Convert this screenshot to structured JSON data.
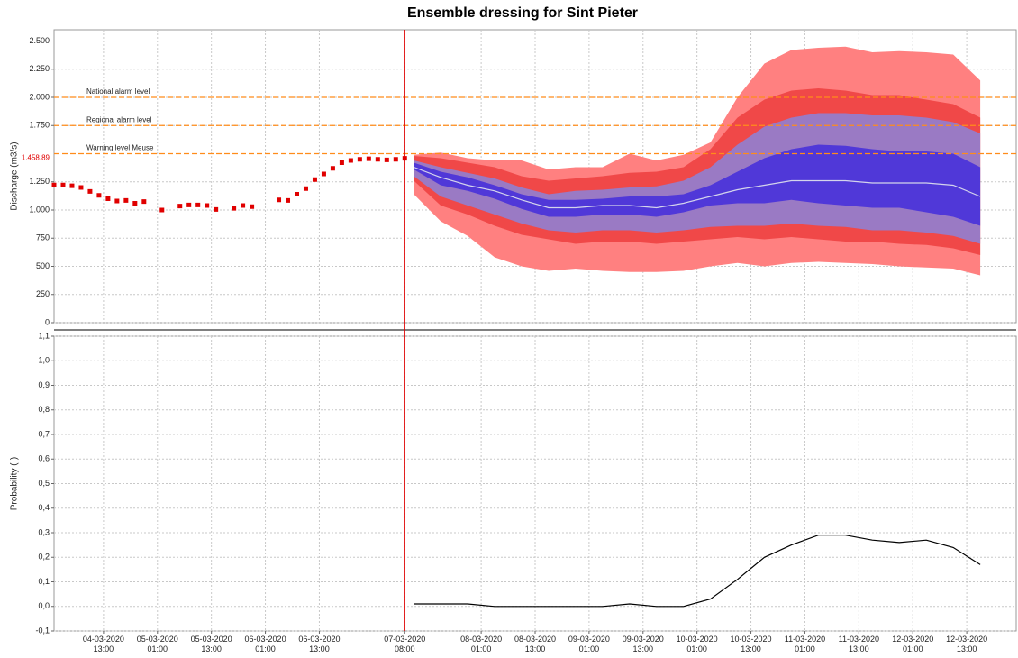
{
  "chart_data": [
    {
      "type": "ensemble",
      "title": "Ensemble dressing for Sint Pieter",
      "y_label": "Discharge (m3/s)",
      "ylim": [
        0,
        2600
      ],
      "yticks": [
        0,
        250,
        500,
        750,
        {
          "value": 1000,
          "label": "1.000"
        },
        {
          "value": 1250,
          "label": "1.250"
        },
        {
          "value": 1750,
          "label": "1.750"
        },
        {
          "value": 2000,
          "label": "2.000"
        },
        {
          "value": 2250,
          "label": "2.250"
        },
        {
          "value": 2500,
          "label": "2.500"
        }
      ],
      "grid": true,
      "current_value": {
        "value": 1458.89,
        "label": "1.458.89",
        "color": "#e00000"
      },
      "forecast_time": "2020-03-07T08:00",
      "forecast_time_color": "#e00000",
      "thresholds": [
        {
          "name": "National alarm level",
          "value": 2000,
          "color": "#ff8c1a"
        },
        {
          "name": "Regional alarm level",
          "value": 1750,
          "color": "#ff8c1a"
        },
        {
          "name": "Warning level Meuse",
          "value": 1500,
          "color": "#ff8c1a"
        }
      ],
      "observed": {
        "color": "#e00000",
        "x": [
          "2020-03-04T02:00",
          "2020-03-04T04:00",
          "2020-03-04T06:00",
          "2020-03-04T08:00",
          "2020-03-04T10:00",
          "2020-03-04T12:00",
          "2020-03-04T14:00",
          "2020-03-04T16:00",
          "2020-03-04T18:00",
          "2020-03-04T20:00",
          "2020-03-04T22:00",
          "2020-03-05T00:00",
          "2020-03-05T02:00",
          "2020-03-05T04:00",
          "2020-03-05T06:00",
          "2020-03-05T08:00",
          "2020-03-05T10:00",
          "2020-03-05T12:00",
          "2020-03-05T14:00",
          "2020-03-05T16:00",
          "2020-03-05T18:00",
          "2020-03-05T20:00",
          "2020-03-05T22:00",
          "2020-03-06T00:00",
          "2020-03-06T02:00",
          "2020-03-06T04:00",
          "2020-03-06T06:00",
          "2020-03-06T08:00",
          "2020-03-06T10:00",
          "2020-03-06T12:00",
          "2020-03-06T14:00",
          "2020-03-06T16:00",
          "2020-03-06T18:00",
          "2020-03-06T20:00",
          "2020-03-06T22:00",
          "2020-03-07T00:00",
          "2020-03-07T02:00",
          "2020-03-07T04:00",
          "2020-03-07T06:00",
          "2020-03-07T08:00"
        ],
        "values": [
          1222,
          1222,
          1215,
          1200,
          1165,
          1130,
          1100,
          1080,
          1085,
          1060,
          1075,
          null,
          1000,
          null,
          1035,
          1045,
          1045,
          1040,
          1005,
          null,
          1015,
          1040,
          1030,
          null,
          null,
          1090,
          1085,
          1140,
          1190,
          1270,
          1320,
          1370,
          1420,
          1440,
          1450,
          1455,
          1450,
          1445,
          1450,
          1459
        ]
      },
      "forecast": {
        "x": [
          "2020-03-07T10:00",
          "2020-03-07T16:00",
          "2020-03-07T22:00",
          "2020-03-08T04:00",
          "2020-03-08T10:00",
          "2020-03-08T16:00",
          "2020-03-08T22:00",
          "2020-03-09T04:00",
          "2020-03-09T10:00",
          "2020-03-09T16:00",
          "2020-03-09T22:00",
          "2020-03-10T04:00",
          "2020-03-10T10:00",
          "2020-03-10T16:00",
          "2020-03-10T22:00",
          "2020-03-11T04:00",
          "2020-03-11T10:00",
          "2020-03-11T16:00",
          "2020-03-11T22:00",
          "2020-03-12T04:00",
          "2020-03-12T10:00",
          "2020-03-12T16:00"
        ],
        "bands": [
          {
            "color": "#ff8080",
            "lower": [
              1140,
              900,
              770,
              580,
              500,
              460,
              480,
              460,
              450,
              450,
              460,
              500,
              530,
              500,
              530,
              540,
              530,
              520,
              500,
              490,
              480,
              420
            ],
            "upper": [
              1490,
              1510,
              1460,
              1440,
              1440,
              1360,
              1380,
              1380,
              1500,
              1440,
              1490,
              1600,
              2000,
              2300,
              2420,
              2440,
              2450,
              2400,
              2410,
              2400,
              2380,
              2150
            ]
          },
          {
            "color": "#f04848",
            "lower": [
              1260,
              1040,
              960,
              860,
              780,
              740,
              700,
              720,
              720,
              700,
              720,
              740,
              760,
              740,
              760,
              740,
              720,
              720,
              700,
              690,
              660,
              600
            ],
            "upper": [
              1480,
              1460,
              1420,
              1380,
              1300,
              1260,
              1280,
              1300,
              1330,
              1340,
              1380,
              1540,
              1820,
              1980,
              2060,
              2080,
              2060,
              2020,
              2020,
              1980,
              1940,
              1820
            ]
          },
          {
            "color": "#9a7ac4",
            "lower": [
              1300,
              1120,
              1040,
              960,
              880,
              820,
              800,
              820,
              820,
              800,
              820,
              850,
              860,
              860,
              880,
              860,
              850,
              820,
              820,
              800,
              770,
              700
            ],
            "upper": [
              1440,
              1380,
              1330,
              1280,
              1200,
              1140,
              1170,
              1180,
              1200,
              1210,
              1260,
              1380,
              1580,
              1740,
              1820,
              1860,
              1860,
              1840,
              1840,
              1820,
              1780,
              1680
            ]
          },
          {
            "color": "#5038d8",
            "lower": [
              1360,
              1220,
              1170,
              1100,
              1010,
              940,
              940,
              960,
              960,
              940,
              980,
              1040,
              1060,
              1060,
              1090,
              1060,
              1040,
              1020,
              1020,
              980,
              940,
              860
            ],
            "upper": [
              1420,
              1340,
              1290,
              1220,
              1140,
              1090,
              1090,
              1100,
              1120,
              1120,
              1140,
              1220,
              1340,
              1460,
              1540,
              1580,
              1570,
              1540,
              1520,
              1520,
              1500,
              1380
            ]
          }
        ],
        "median": {
          "color": "#d4d4ec",
          "values": [
            1380,
            1290,
            1220,
            1170,
            1090,
            1020,
            1020,
            1040,
            1040,
            1020,
            1060,
            1120,
            1180,
            1220,
            1260,
            1260,
            1260,
            1240,
            1240,
            1240,
            1220,
            1120
          ]
        }
      }
    },
    {
      "type": "line",
      "y_label": "Probability (-)",
      "ylim": [
        -0.1,
        1.1
      ],
      "yticks": [
        {
          "value": -0.1,
          "label": "-0,1"
        },
        {
          "value": 0,
          "label": "0,0"
        },
        {
          "value": 0.1,
          "label": "0,1"
        },
        {
          "value": 0.2,
          "label": "0,2"
        },
        {
          "value": 0.3,
          "label": "0,3"
        },
        {
          "value": 0.4,
          "label": "0,4"
        },
        {
          "value": 0.5,
          "label": "0,5"
        },
        {
          "value": 0.6,
          "label": "0,6"
        },
        {
          "value": 0.7,
          "label": "0,7"
        },
        {
          "value": 0.8,
          "label": "0,8"
        },
        {
          "value": 0.9,
          "label": "0,9"
        },
        {
          "value": 1.0,
          "label": "1,0"
        },
        {
          "value": 1.1,
          "label": "1,1"
        }
      ],
      "grid": true,
      "xlim": [
        "2020-03-04T02:00",
        "2020-03-13T00:00"
      ],
      "xticks": [
        {
          "value": "2020-03-04T13:00",
          "label": "04-03-2020\n13:00"
        },
        {
          "value": "2020-03-05T01:00",
          "label": "05-03-2020\n01:00"
        },
        {
          "value": "2020-03-05T13:00",
          "label": "05-03-2020\n13:00"
        },
        {
          "value": "2020-03-06T01:00",
          "label": "06-03-2020\n01:00"
        },
        {
          "value": "2020-03-06T13:00",
          "label": "06-03-2020\n13:00"
        },
        {
          "value": "2020-03-07T08:00",
          "label": "07-03-2020\n08:00"
        },
        {
          "value": "2020-03-08T01:00",
          "label": "08-03-2020\n01:00"
        },
        {
          "value": "2020-03-08T13:00",
          "label": "08-03-2020\n13:00"
        },
        {
          "value": "2020-03-09T01:00",
          "label": "09-03-2020\n01:00"
        },
        {
          "value": "2020-03-09T13:00",
          "label": "09-03-2020\n13:00"
        },
        {
          "value": "2020-03-10T01:00",
          "label": "10-03-2020\n01:00"
        },
        {
          "value": "2020-03-10T13:00",
          "label": "10-03-2020\n13:00"
        },
        {
          "value": "2020-03-11T01:00",
          "label": "11-03-2020\n01:00"
        },
        {
          "value": "2020-03-11T13:00",
          "label": "11-03-2020\n13:00"
        },
        {
          "value": "2020-03-12T01:00",
          "label": "12-03-2020\n01:00"
        },
        {
          "value": "2020-03-12T13:00",
          "label": "12-03-2020\n13:00"
        }
      ],
      "color": "#000000",
      "x": [
        "2020-03-07T10:00",
        "2020-03-07T16:00",
        "2020-03-07T22:00",
        "2020-03-08T04:00",
        "2020-03-08T10:00",
        "2020-03-08T16:00",
        "2020-03-08T22:00",
        "2020-03-09T04:00",
        "2020-03-09T10:00",
        "2020-03-09T16:00",
        "2020-03-09T22:00",
        "2020-03-10T04:00",
        "2020-03-10T10:00",
        "2020-03-10T16:00",
        "2020-03-10T22:00",
        "2020-03-11T04:00",
        "2020-03-11T10:00",
        "2020-03-11T16:00",
        "2020-03-11T22:00",
        "2020-03-12T04:00",
        "2020-03-12T10:00",
        "2020-03-12T16:00"
      ],
      "values": [
        0.01,
        0.01,
        0.01,
        0,
        0,
        0,
        0,
        0,
        0.01,
        0,
        0,
        0.03,
        0.11,
        0.2,
        0.25,
        0.29,
        0.29,
        0.27,
        0.26,
        0.27,
        0.24,
        0.17
      ]
    }
  ]
}
